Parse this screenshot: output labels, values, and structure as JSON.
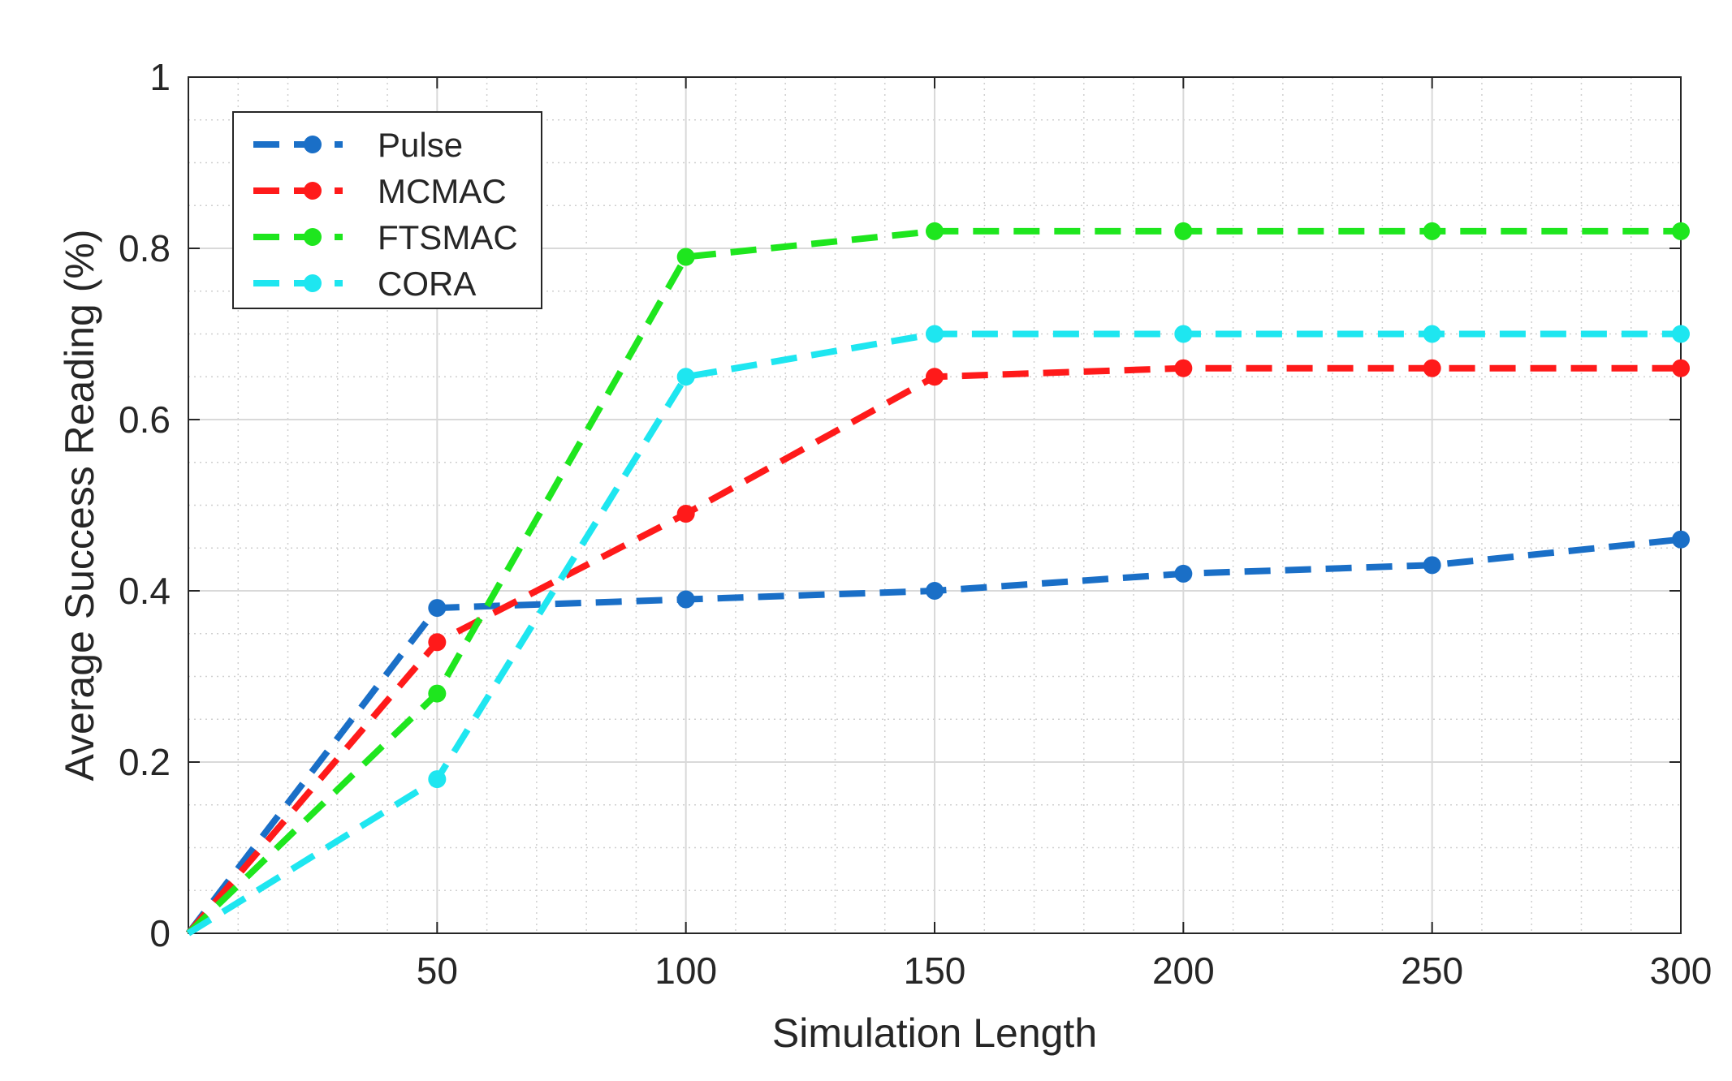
{
  "chart_data": {
    "type": "line",
    "title": "",
    "xlabel": "Simulation Length",
    "ylabel": "Average Success Reading (%)",
    "xlim": [
      0,
      300
    ],
    "ylim": [
      0,
      1
    ],
    "x_ticks": [
      50,
      100,
      150,
      200,
      250,
      300
    ],
    "x_tick_labels": [
      "50",
      "100",
      "150",
      "200",
      "250",
      "300"
    ],
    "y_ticks": [
      0,
      0.2,
      0.4,
      0.6,
      0.8,
      1
    ],
    "y_tick_labels": [
      "0",
      "0.2",
      "0.4",
      "0.6",
      "0.8",
      "1"
    ],
    "grid": true,
    "minor_grid": true,
    "legend_position": "top-left",
    "x": [
      0,
      50,
      100,
      150,
      200,
      250,
      300
    ],
    "series": [
      {
        "name": "Pulse",
        "color": "#1a6fc7",
        "values": [
          0,
          0.38,
          0.39,
          0.4,
          0.42,
          0.43,
          0.46
        ]
      },
      {
        "name": "MCMAC",
        "color": "#ff1a1a",
        "values": [
          0,
          0.34,
          0.49,
          0.65,
          0.66,
          0.66,
          0.66
        ]
      },
      {
        "name": "FTSMAC",
        "color": "#1ee61e",
        "values": [
          0,
          0.28,
          0.79,
          0.82,
          0.82,
          0.82,
          0.82
        ]
      },
      {
        "name": "CORA",
        "color": "#1ee6f0",
        "values": [
          0,
          0.18,
          0.65,
          0.7,
          0.7,
          0.7,
          0.7
        ]
      }
    ]
  }
}
